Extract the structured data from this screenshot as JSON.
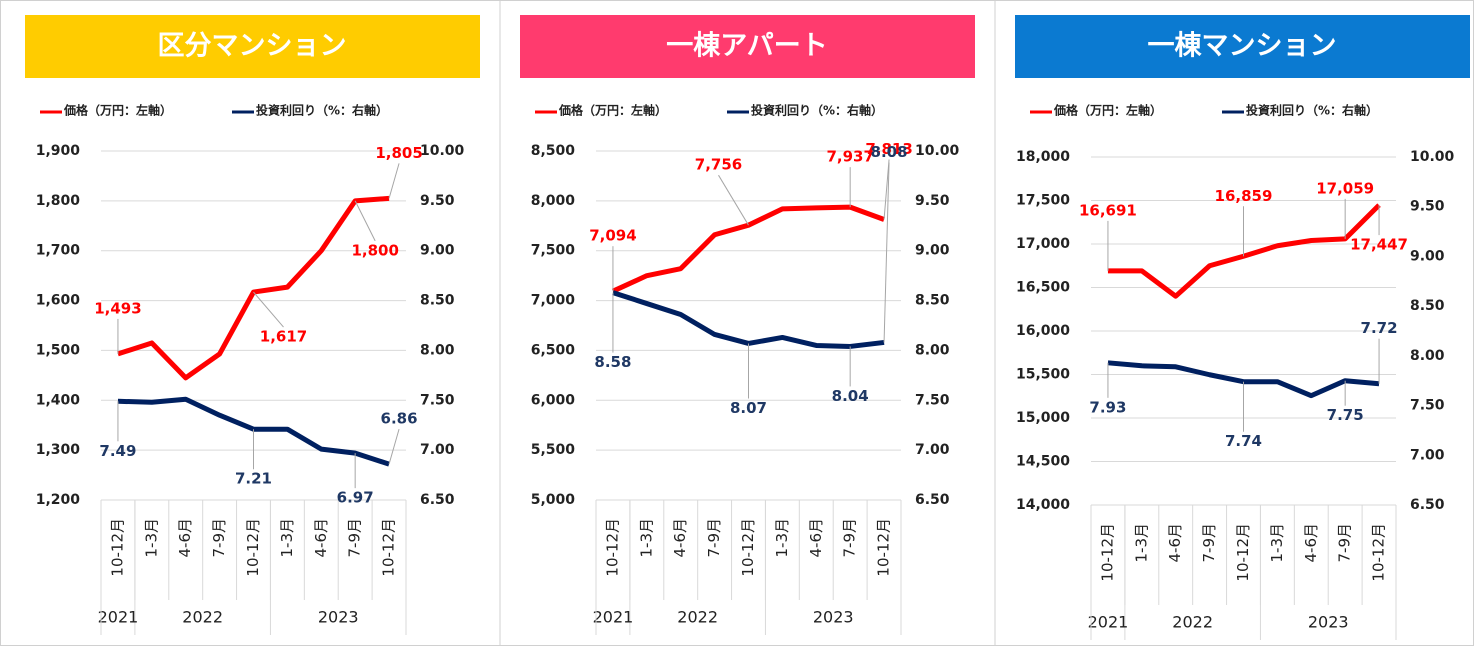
{
  "chart_data": [
    {
      "type": "line",
      "title": "区分マンション",
      "title_color": "#ffcc00",
      "categories": [
        "10-12月",
        "1-3月",
        "4-6月",
        "7-9月",
        "10-12月",
        "1-3月",
        "4-6月",
        "7-9月",
        "10-12月"
      ],
      "groups": [
        {
          "label": "2021",
          "count": 1
        },
        {
          "label": "2022",
          "count": 4
        },
        {
          "label": "2023",
          "count": 4
        }
      ],
      "series": [
        {
          "name": "価格（万円：左軸）",
          "color": "#ff0000",
          "axis": "y",
          "values": [
            1493,
            1515,
            1445,
            1493,
            1617,
            1627,
            1700,
            1800,
            1805
          ],
          "value_labels": [
            "1,493",
            null,
            null,
            null,
            "1,617",
            null,
            null,
            "1,800",
            "1,805"
          ]
        },
        {
          "name": "投資利回り（%：右軸）",
          "color": "#002060",
          "axis": "y2",
          "values": [
            7.49,
            7.48,
            7.51,
            7.35,
            7.21,
            7.21,
            7.01,
            6.97,
            6.86
          ],
          "value_labels": [
            "7.49",
            null,
            null,
            null,
            "7.21",
            null,
            null,
            "6.97",
            "6.86"
          ]
        }
      ],
      "ylim": [
        1200,
        1900
      ],
      "yticks": [
        {
          "value": 1200,
          "label": "1,200"
        },
        {
          "value": 1300,
          "label": "1,300"
        },
        {
          "value": 1400,
          "label": "1,400"
        },
        {
          "value": 1500,
          "label": "1,500"
        },
        {
          "value": 1600,
          "label": "1,600"
        },
        {
          "value": 1700,
          "label": "1,700"
        },
        {
          "value": 1800,
          "label": "1,800"
        },
        {
          "value": 1900,
          "label": "1,900"
        }
      ],
      "y2lim": [
        6.5,
        10
      ],
      "y2ticks": [
        {
          "value": 6.5,
          "label": "6.50"
        },
        {
          "value": 7,
          "label": "7.00"
        },
        {
          "value": 7.5,
          "label": "7.50"
        },
        {
          "value": 8,
          "label": "8.00"
        },
        {
          "value": 8.5,
          "label": "8.50"
        },
        {
          "value": 9,
          "label": "9.00"
        },
        {
          "value": 9.5,
          "label": "9.50"
        },
        {
          "value": 10,
          "label": "10.00"
        }
      ],
      "grid": true
    },
    {
      "type": "line",
      "title": "一棟アパート",
      "title_color": "#ff3b6e",
      "categories": [
        "10-12月",
        "1-3月",
        "4-6月",
        "7-9月",
        "10-12月",
        "1-3月",
        "4-6月",
        "7-9月",
        "10-12月"
      ],
      "groups": [
        {
          "label": "2021",
          "count": 1
        },
        {
          "label": "2022",
          "count": 4
        },
        {
          "label": "2023",
          "count": 4
        }
      ],
      "series": [
        {
          "name": "価格（万円：左軸）",
          "color": "#ff0000",
          "axis": "y",
          "values": [
            7094,
            7250,
            7320,
            7660,
            7756,
            7920,
            7930,
            7937,
            7813
          ],
          "value_labels": [
            "7,094",
            null,
            null,
            null,
            "7,756",
            null,
            null,
            "7,937",
            "7,813"
          ]
        },
        {
          "name": "投資利回り（%：右軸）",
          "color": "#002060",
          "axis": "y2",
          "values": [
            8.58,
            8.47,
            8.36,
            8.16,
            8.07,
            8.13,
            8.05,
            8.04,
            8.08
          ],
          "value_labels": [
            "8.58",
            null,
            null,
            null,
            "8.07",
            null,
            null,
            "8.04",
            "8.08"
          ]
        }
      ],
      "ylim": [
        5000,
        8500
      ],
      "yticks": [
        {
          "value": 5000,
          "label": "5,000"
        },
        {
          "value": 5500,
          "label": "5,500"
        },
        {
          "value": 6000,
          "label": "6,000"
        },
        {
          "value": 6500,
          "label": "6,500"
        },
        {
          "value": 7000,
          "label": "7,000"
        },
        {
          "value": 7500,
          "label": "7,500"
        },
        {
          "value": 8000,
          "label": "8,000"
        },
        {
          "value": 8500,
          "label": "8,500"
        }
      ],
      "y2lim": [
        6.5,
        10
      ],
      "y2ticks": [
        {
          "value": 6.5,
          "label": "6.50"
        },
        {
          "value": 7,
          "label": "7.00"
        },
        {
          "value": 7.5,
          "label": "7.50"
        },
        {
          "value": 8,
          "label": "8.00"
        },
        {
          "value": 8.5,
          "label": "8.50"
        },
        {
          "value": 9,
          "label": "9.00"
        },
        {
          "value": 9.5,
          "label": "9.50"
        },
        {
          "value": 10,
          "label": "10.00"
        }
      ],
      "grid": true
    },
    {
      "type": "line",
      "title": "一棟マンション",
      "title_color": "#0b7ad1",
      "categories": [
        "10-12月",
        "1-3月",
        "4-6月",
        "7-9月",
        "10-12月",
        "1-3月",
        "4-6月",
        "7-9月",
        "10-12月"
      ],
      "groups": [
        {
          "label": "2021",
          "count": 1
        },
        {
          "label": "2022",
          "count": 4
        },
        {
          "label": "2023",
          "count": 4
        }
      ],
      "series": [
        {
          "name": "価格（万円：左軸）",
          "color": "#ff0000",
          "axis": "y",
          "values": [
            16691,
            16691,
            16400,
            16750,
            16859,
            16980,
            17040,
            17059,
            17447
          ],
          "value_labels": [
            "16,691",
            null,
            null,
            null,
            "16,859",
            null,
            null,
            "17,059",
            "17,447"
          ]
        },
        {
          "name": "投資利回り（%：右軸）",
          "color": "#002060",
          "axis": "y2",
          "values": [
            7.93,
            7.9,
            7.89,
            7.81,
            7.74,
            7.74,
            7.6,
            7.75,
            7.72
          ],
          "value_labels": [
            "7.93",
            null,
            null,
            null,
            "7.74",
            null,
            null,
            "7.75",
            "7.72"
          ]
        }
      ],
      "ylim": [
        14000,
        18000
      ],
      "yticks": [
        {
          "value": 14000,
          "label": "14,000"
        },
        {
          "value": 14500,
          "label": "14,500"
        },
        {
          "value": 15000,
          "label": "15,000"
        },
        {
          "value": 15500,
          "label": "15,500"
        },
        {
          "value": 16000,
          "label": "16,000"
        },
        {
          "value": 16500,
          "label": "16,500"
        },
        {
          "value": 17000,
          "label": "17,000"
        },
        {
          "value": 17500,
          "label": "17,500"
        },
        {
          "value": 18000,
          "label": "18,000"
        }
      ],
      "y2lim": [
        6.5,
        10
      ],
      "y2ticks": [
        {
          "value": 6.5,
          "label": "6.50"
        },
        {
          "value": 7,
          "label": "7.00"
        },
        {
          "value": 7.5,
          "label": "7.50"
        },
        {
          "value": 8,
          "label": "8.00"
        },
        {
          "value": 8.5,
          "label": "8.50"
        },
        {
          "value": 9,
          "label": "9.00"
        },
        {
          "value": 9.5,
          "label": "9.50"
        },
        {
          "value": 10,
          "label": "10.00"
        }
      ],
      "grid": true
    }
  ]
}
